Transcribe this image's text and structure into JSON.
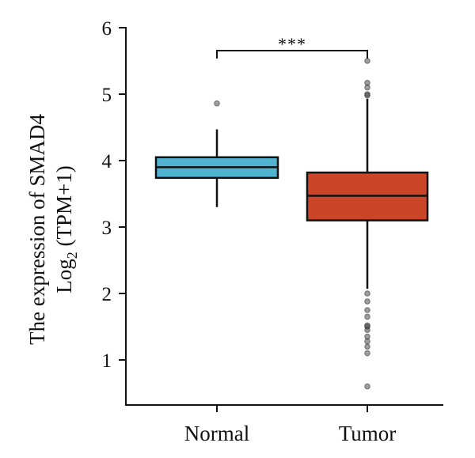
{
  "chart_data": {
    "type": "boxplot",
    "categories": [
      "Normal",
      "Tumor"
    ],
    "ylabel_line1": "The expression of SMAD4",
    "ylabel_line2_main": "Log",
    "ylabel_line2_sub": "2",
    "ylabel_line2_rest": " (TPM+1)",
    "ylim": [
      0.5,
      6
    ],
    "yticks": [
      "1",
      "2",
      "3",
      "4",
      "5",
      "6"
    ],
    "grid": false,
    "significance": "***",
    "boxes": [
      {
        "name": "Normal",
        "color": "#4fb3d1",
        "min": 3.3,
        "q1": 3.74,
        "median": 3.9,
        "q3": 4.05,
        "max": 4.47,
        "outliers": [
          4.86
        ]
      },
      {
        "name": "Tumor",
        "color": "#cc4528",
        "min": 2.07,
        "q1": 3.1,
        "median": 3.47,
        "q3": 3.82,
        "max": 4.93,
        "outliers": [
          4.98,
          5.0,
          5.1,
          5.17,
          5.5,
          2.0,
          1.88,
          1.75,
          1.65,
          1.52,
          1.5,
          1.45,
          1.35,
          1.28,
          1.2,
          1.1,
          0.6
        ]
      }
    ]
  }
}
